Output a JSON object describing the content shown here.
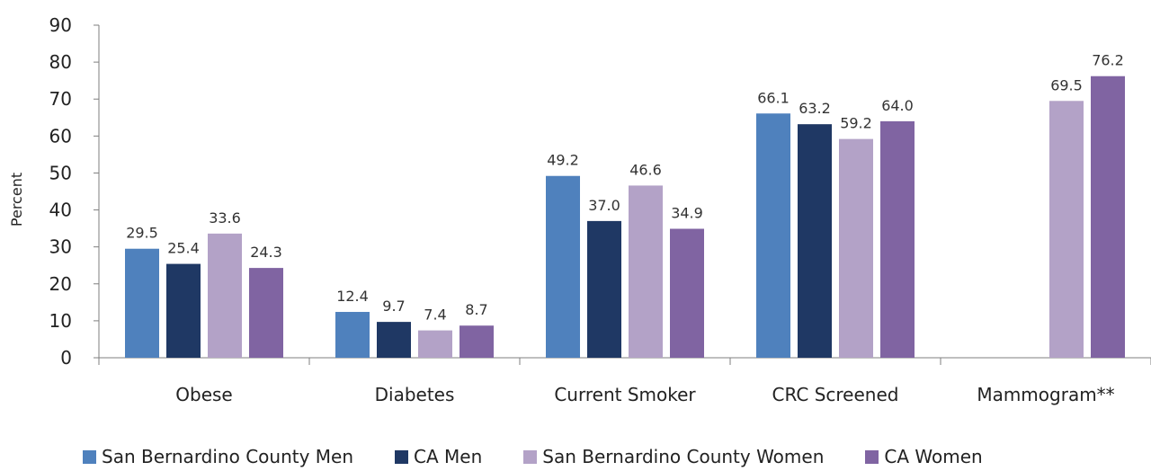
{
  "chart_data": {
    "type": "bar",
    "ylabel": "Percent",
    "ylim": [
      0,
      90
    ],
    "yticks": [
      0,
      10,
      20,
      30,
      40,
      50,
      60,
      70,
      80,
      90
    ],
    "categories": [
      "Obese",
      "Diabetes",
      "Current Smoker",
      "CRC Screened",
      "Mammogram**"
    ],
    "series": [
      {
        "name": "San Bernardino County Men",
        "color": "#4f81bd",
        "values": [
          29.5,
          12.4,
          49.2,
          66.1,
          null
        ]
      },
      {
        "name": "CA Men",
        "color": "#1f3864",
        "values": [
          25.4,
          9.7,
          37.0,
          63.2,
          null
        ]
      },
      {
        "name": "San Bernardino County Women",
        "color": "#b3a2c7",
        "values": [
          33.6,
          7.4,
          46.6,
          59.2,
          69.5
        ]
      },
      {
        "name": "CA Women",
        "color": "#8064a2",
        "values": [
          24.3,
          8.7,
          34.9,
          64.0,
          76.2
        ]
      }
    ],
    "grid": false,
    "legend": "bottom"
  }
}
